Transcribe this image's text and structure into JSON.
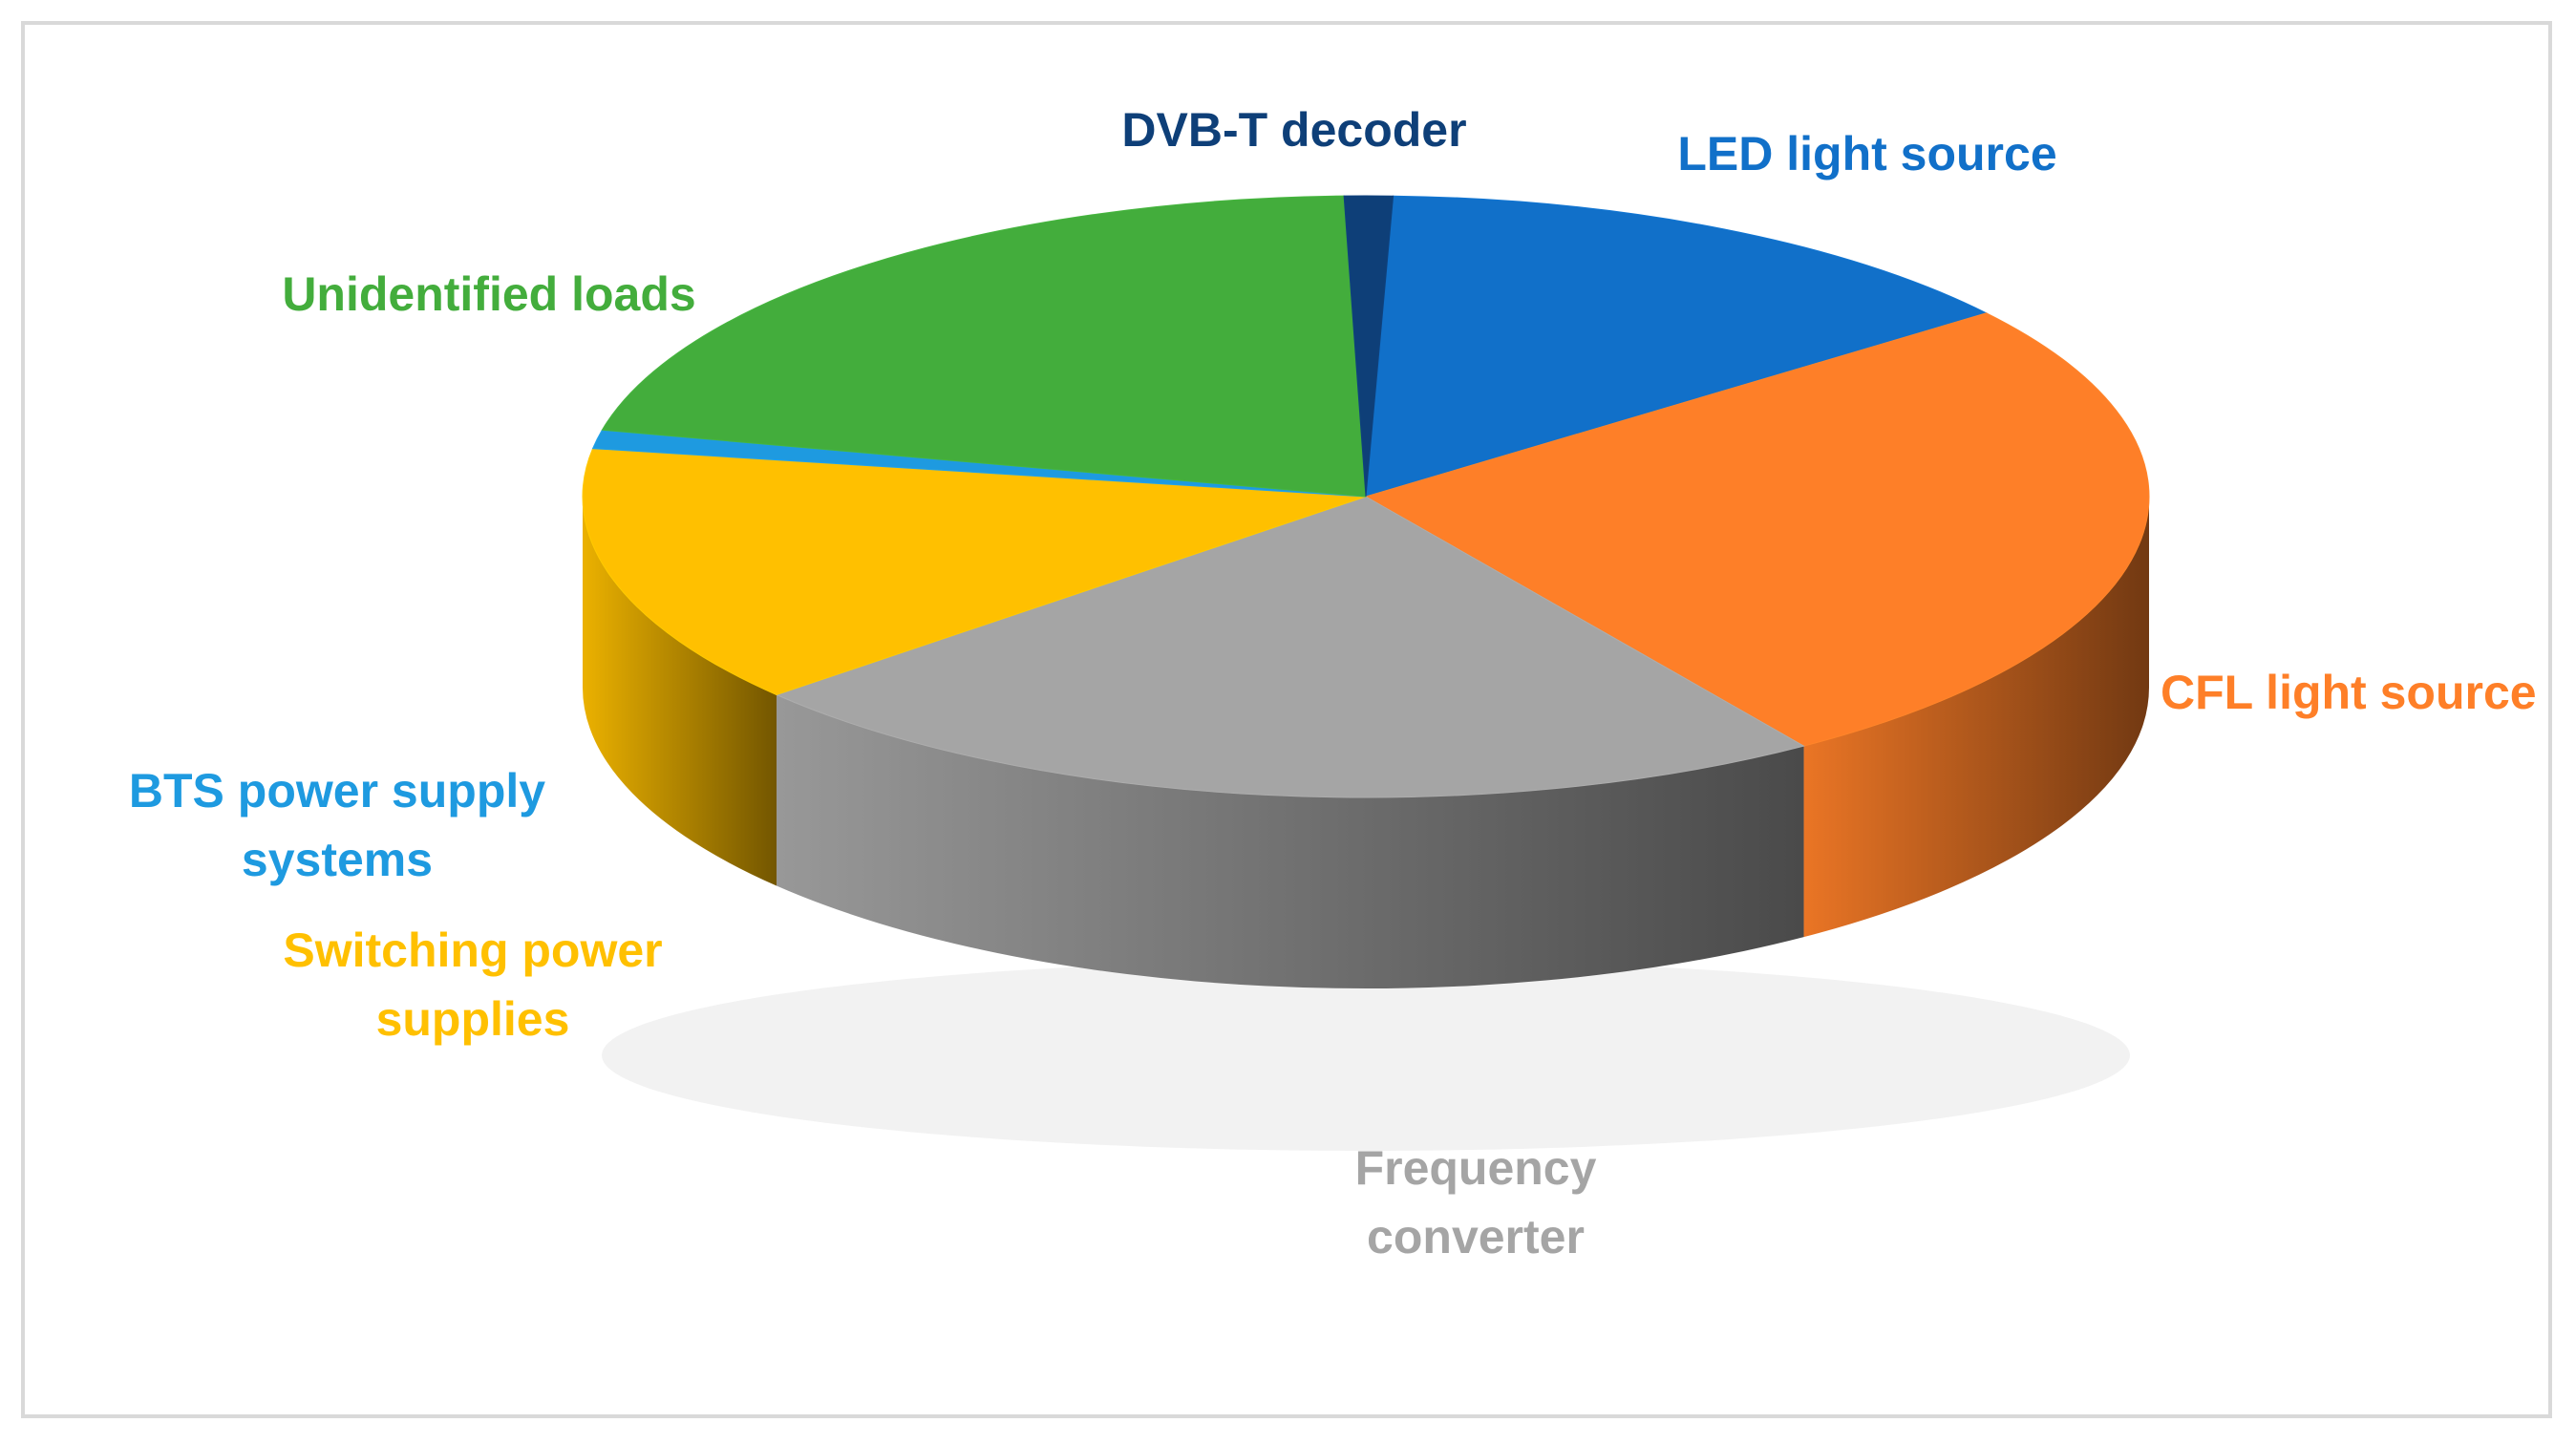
{
  "chart_data": {
    "type": "pie",
    "style": "3d",
    "title": "",
    "legend": "none",
    "labels_position": "outside",
    "slices": [
      {
        "label": "LED light source",
        "label_lines": [
          "LED light source"
        ],
        "value": 14,
        "color": "#1170c9"
      },
      {
        "label": "CFL light source",
        "label_lines": [
          "CFL light source"
        ],
        "value": 26,
        "color": "#fe7f28"
      },
      {
        "label": "Frequency converter",
        "label_lines": [
          "Frequency",
          "converter"
        ],
        "value": 23,
        "color": "#a5a5a5"
      },
      {
        "label": "Switching power supplies",
        "label_lines": [
          "Switching power",
          "supplies"
        ],
        "value": 14,
        "color": "#ffc000"
      },
      {
        "label": "BTS power supply systems",
        "label_lines": [
          "BTS power supply",
          "systems"
        ],
        "value": 1,
        "color": "#1e9ae0"
      },
      {
        "label": "Unidentified loads",
        "label_lines": [
          "Unidentified loads"
        ],
        "value": 21,
        "color": "#43ad3c"
      },
      {
        "label": "DVB-T decoder",
        "label_lines": [
          "DVB-T decoder"
        ],
        "value": 1,
        "color": "#0e3f78"
      }
    ]
  }
}
